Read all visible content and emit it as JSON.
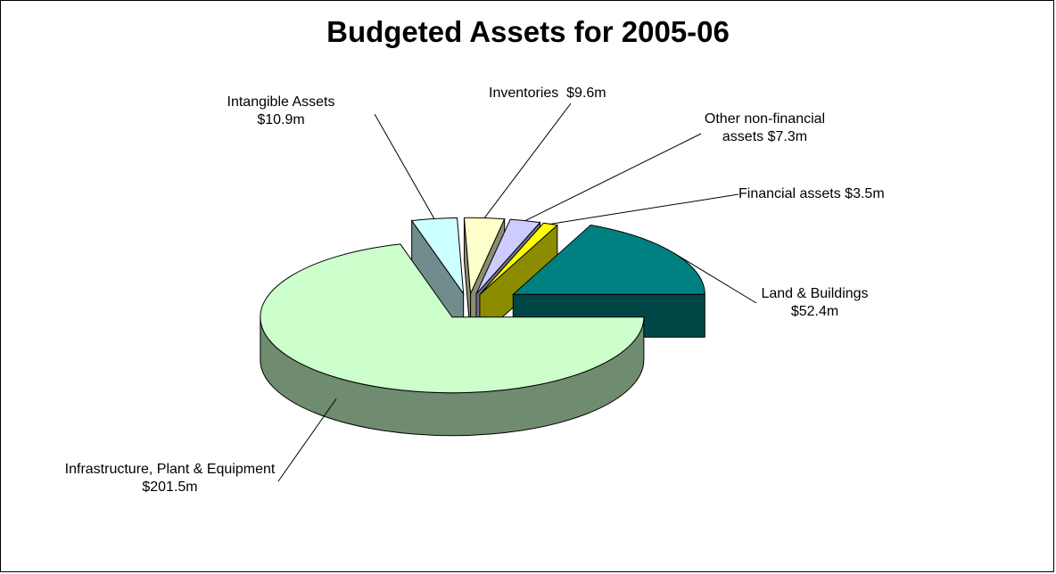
{
  "chart_data": {
    "type": "pie",
    "title": "Budgeted Assets for 2005-06",
    "categories": [
      "Land & Buildings",
      "Financial assets",
      "Other non-financial assets",
      "Inventories",
      "Intangible Assets",
      "Infrastructure, Plant & Equipment"
    ],
    "values": [
      52.4,
      3.5,
      7.3,
      9.6,
      10.9,
      201.5
    ],
    "value_labels": [
      "$52.4m",
      "$3.5m",
      "$7.3m",
      "$9.6m",
      "$10.9m",
      "$201.5m"
    ],
    "colors": [
      "#008080",
      "#ffff00",
      "#ccccff",
      "#ffffcc",
      "#ccffff",
      "#ccffcc"
    ],
    "three_d": true,
    "exploded": true
  }
}
